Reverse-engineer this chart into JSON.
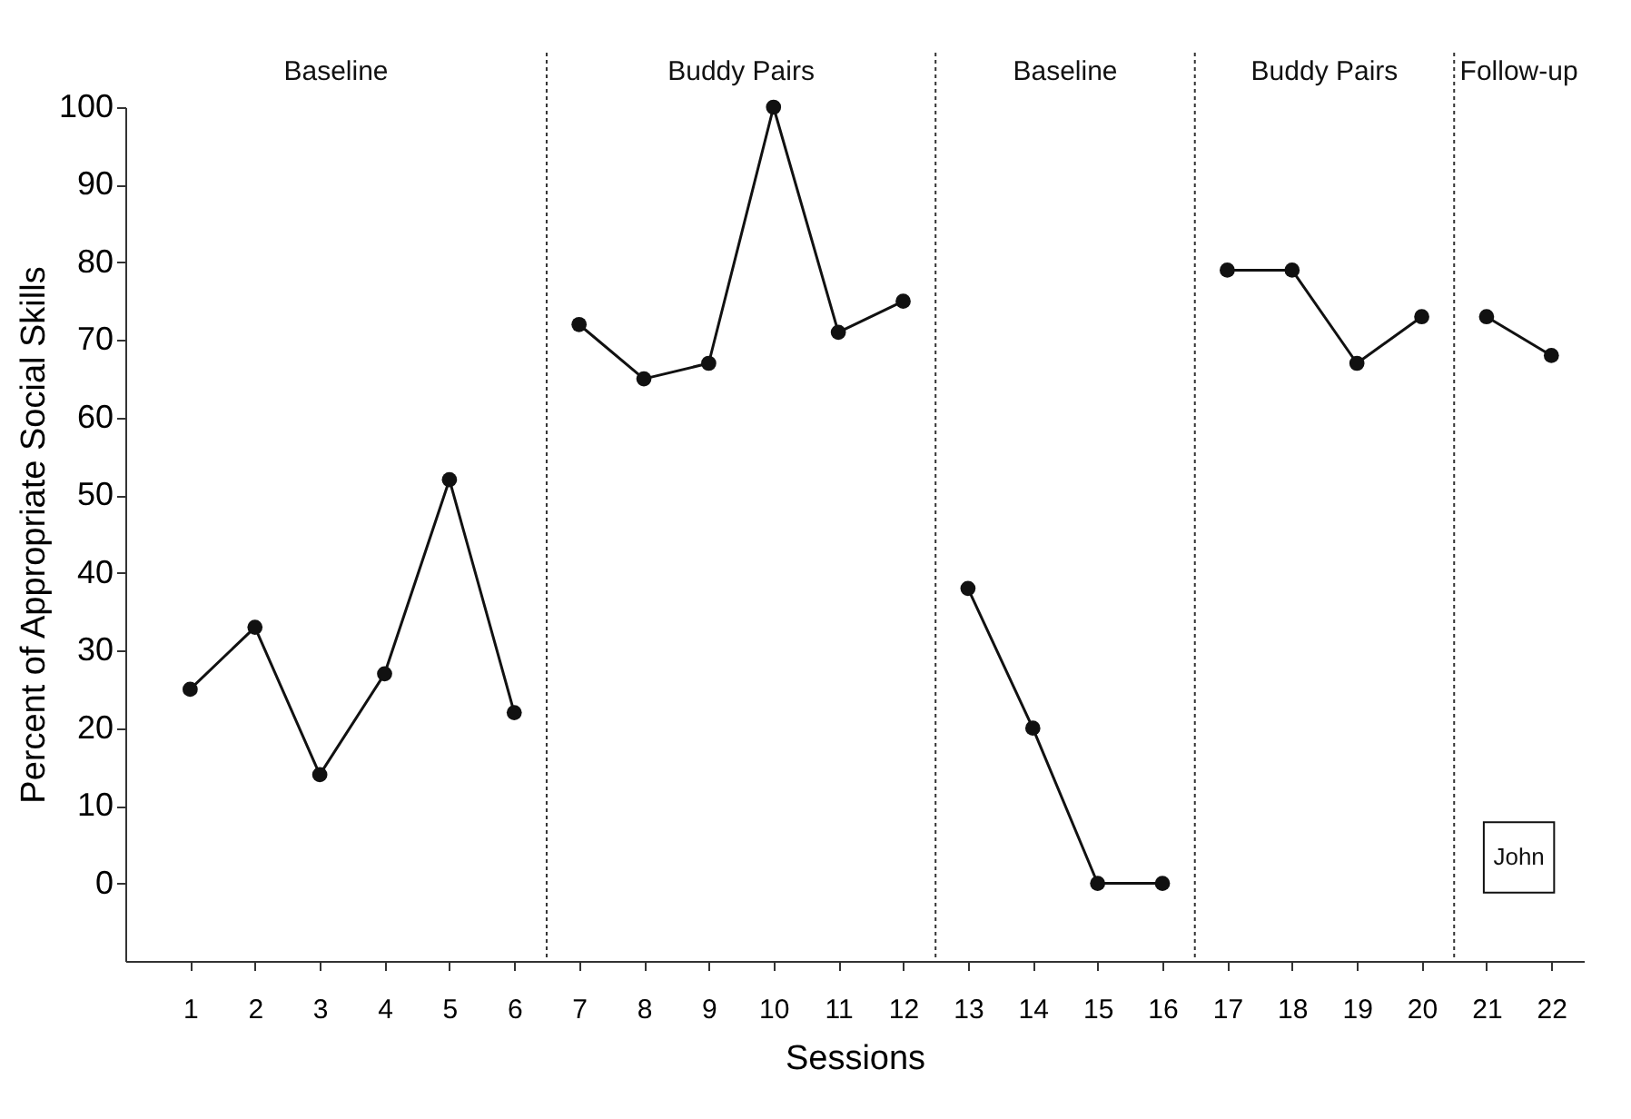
{
  "chart_data": {
    "type": "line",
    "xlabel": "Sessions",
    "ylabel": "Percent of Appropriate Social Skills",
    "xlim": [
      0,
      22.5
    ],
    "xticks": [
      1,
      2,
      3,
      4,
      5,
      6,
      7,
      8,
      9,
      10,
      11,
      12,
      13,
      14,
      15,
      16,
      17,
      18,
      19,
      20,
      21,
      22
    ],
    "ylim": [
      -10,
      100
    ],
    "yticks": [
      0,
      10,
      20,
      30,
      40,
      50,
      60,
      70,
      80,
      90,
      100
    ],
    "grid": false,
    "legend": false,
    "marker": "circle",
    "line_style": "solid",
    "series": [
      {
        "color": "#111111",
        "x": [
          1,
          2,
          3,
          4,
          5,
          6
        ],
        "values": [
          25,
          33,
          14,
          27,
          52,
          22
        ]
      },
      {
        "color": "#111111",
        "x": [
          7,
          8,
          9,
          10,
          11,
          12
        ],
        "values": [
          72,
          65,
          67,
          100,
          71,
          75
        ]
      },
      {
        "color": "#111111",
        "x": [
          13,
          14,
          15,
          16
        ],
        "values": [
          38,
          20,
          0,
          0
        ]
      },
      {
        "color": "#111111",
        "x": [
          17,
          18,
          19,
          20
        ],
        "values": [
          79,
          79,
          67,
          73
        ]
      },
      {
        "color": "#111111",
        "x": [
          21,
          22
        ],
        "values": [
          73,
          68
        ]
      }
    ],
    "ref_lines": [
      {
        "axis": "x",
        "value": 6.5,
        "color": "#333333",
        "line_style": "dotted"
      },
      {
        "axis": "x",
        "value": 12.5,
        "color": "#333333",
        "line_style": "dotted"
      },
      {
        "axis": "x",
        "value": 16.5,
        "color": "#333333",
        "line_style": "dotted"
      },
      {
        "axis": "x",
        "value": 20.5,
        "color": "#333333",
        "line_style": "dotted"
      }
    ],
    "annotations": [
      "Baseline",
      "Buddy Pairs",
      "Baseline",
      "Buddy Pairs",
      "Follow-up",
      "John"
    ]
  }
}
